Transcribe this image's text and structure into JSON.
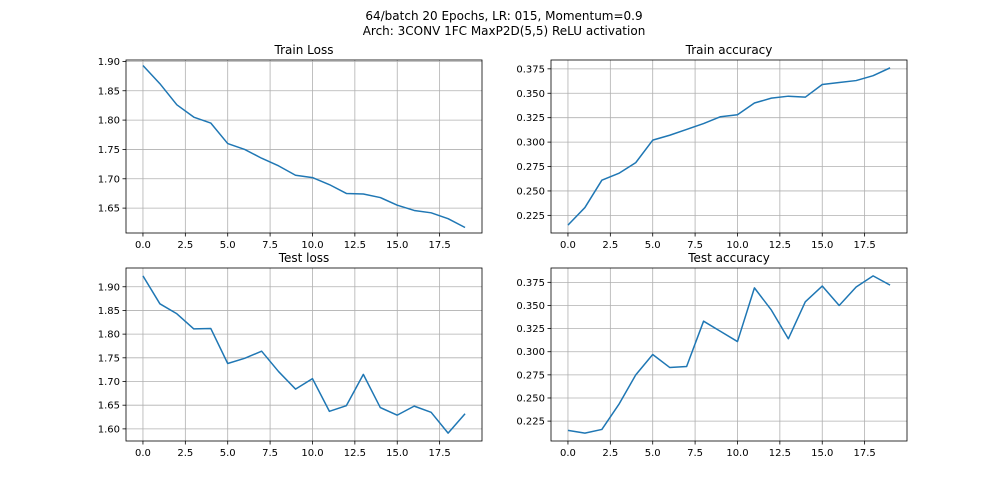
{
  "figure": {
    "title_line1": "64/batch 20 Epochs, LR: 015, Momentum=0.9",
    "title_line2": "Arch: 3CONV 1FC MaxP2D(5,5) ReLU activation"
  },
  "chart_data": [
    {
      "type": "line",
      "title": "Train Loss",
      "x": [
        0,
        1,
        2,
        3,
        4,
        5,
        6,
        7,
        8,
        9,
        10,
        11,
        12,
        13,
        14,
        15,
        16,
        17,
        18,
        19
      ],
      "series": [
        {
          "values": [
            1.893,
            1.862,
            1.826,
            1.805,
            1.795,
            1.76,
            1.75,
            1.735,
            1.722,
            1.706,
            1.702,
            1.69,
            1.675,
            1.674,
            1.668,
            1.655,
            1.646,
            1.642,
            1.632,
            1.617
          ]
        }
      ],
      "xlim": [
        -1.0,
        20.0
      ],
      "ylim": [
        1.6076,
        1.9024
      ],
      "xticks": [
        0.0,
        2.5,
        5.0,
        7.5,
        10.0,
        12.5,
        15.0,
        17.5
      ],
      "xtick_labels": [
        "0.0",
        "2.5",
        "5.0",
        "7.5",
        "10.0",
        "12.5",
        "15.0",
        "17.5"
      ],
      "yticks": [
        1.65,
        1.7,
        1.75,
        1.8,
        1.85,
        1.9
      ],
      "ytick_labels": [
        "1.65",
        "1.70",
        "1.75",
        "1.80",
        "1.85",
        "1.90"
      ],
      "grid": true,
      "color": "#1f77b4"
    },
    {
      "type": "line",
      "title": "Train accuracy",
      "x": [
        0,
        1,
        2,
        3,
        4,
        5,
        6,
        7,
        8,
        9,
        10,
        11,
        12,
        13,
        14,
        15,
        16,
        17,
        18,
        19
      ],
      "series": [
        {
          "values": [
            0.215,
            0.233,
            0.261,
            0.268,
            0.279,
            0.302,
            0.307,
            0.313,
            0.319,
            0.326,
            0.328,
            0.34,
            0.345,
            0.347,
            0.346,
            0.359,
            0.361,
            0.363,
            0.368,
            0.376
          ]
        }
      ],
      "xlim": [
        -1.0,
        20.0
      ],
      "ylim": [
        0.20695,
        0.38405
      ],
      "xticks": [
        0.0,
        2.5,
        5.0,
        7.5,
        10.0,
        12.5,
        15.0,
        17.5
      ],
      "xtick_labels": [
        "0.0",
        "2.5",
        "5.0",
        "7.5",
        "10.0",
        "12.5",
        "15.0",
        "17.5"
      ],
      "yticks": [
        0.225,
        0.25,
        0.275,
        0.3,
        0.325,
        0.35,
        0.375
      ],
      "ytick_labels": [
        "0.225",
        "0.250",
        "0.275",
        "0.300",
        "0.325",
        "0.350",
        "0.375"
      ],
      "grid": true,
      "color": "#1f77b4"
    },
    {
      "type": "line",
      "title": "Test loss",
      "x": [
        0,
        1,
        2,
        3,
        4,
        5,
        6,
        7,
        8,
        9,
        10,
        11,
        12,
        13,
        14,
        15,
        16,
        17,
        18,
        19
      ],
      "series": [
        {
          "values": [
            1.923,
            1.864,
            1.843,
            1.811,
            1.812,
            1.738,
            1.749,
            1.764,
            1.721,
            1.684,
            1.706,
            1.637,
            1.649,
            1.715,
            1.645,
            1.629,
            1.648,
            1.635,
            1.591,
            1.632
          ]
        }
      ],
      "xlim": [
        -1.0,
        20.0
      ],
      "ylim": [
        1.5744,
        1.9396
      ],
      "xticks": [
        0.0,
        2.5,
        5.0,
        7.5,
        10.0,
        12.5,
        15.0,
        17.5
      ],
      "xtick_labels": [
        "0.0",
        "2.5",
        "5.0",
        "7.5",
        "10.0",
        "12.5",
        "15.0",
        "17.5"
      ],
      "yticks": [
        1.6,
        1.65,
        1.7,
        1.75,
        1.8,
        1.85,
        1.9
      ],
      "ytick_labels": [
        "1.60",
        "1.65",
        "1.70",
        "1.75",
        "1.80",
        "1.85",
        "1.90"
      ],
      "grid": true,
      "color": "#1f77b4"
    },
    {
      "type": "line",
      "title": "Test accuracy",
      "x": [
        0,
        1,
        2,
        3,
        4,
        5,
        6,
        7,
        8,
        9,
        10,
        11,
        12,
        13,
        14,
        15,
        16,
        17,
        18,
        19
      ],
      "series": [
        {
          "values": [
            0.215,
            0.212,
            0.216,
            0.243,
            0.275,
            0.297,
            0.283,
            0.284,
            0.333,
            0.322,
            0.311,
            0.369,
            0.345,
            0.314,
            0.354,
            0.371,
            0.35,
            0.37,
            0.382,
            0.372
          ]
        }
      ],
      "xlim": [
        -1.0,
        20.0
      ],
      "ylim": [
        0.2035,
        0.3905
      ],
      "xticks": [
        0.0,
        2.5,
        5.0,
        7.5,
        10.0,
        12.5,
        15.0,
        17.5
      ],
      "xtick_labels": [
        "0.0",
        "2.5",
        "5.0",
        "7.5",
        "10.0",
        "12.5",
        "15.0",
        "17.5"
      ],
      "yticks": [
        0.225,
        0.25,
        0.275,
        0.3,
        0.325,
        0.35,
        0.375
      ],
      "ytick_labels": [
        "0.225",
        "0.250",
        "0.275",
        "0.300",
        "0.325",
        "0.350",
        "0.375"
      ],
      "grid": true,
      "color": "#1f77b4"
    }
  ]
}
